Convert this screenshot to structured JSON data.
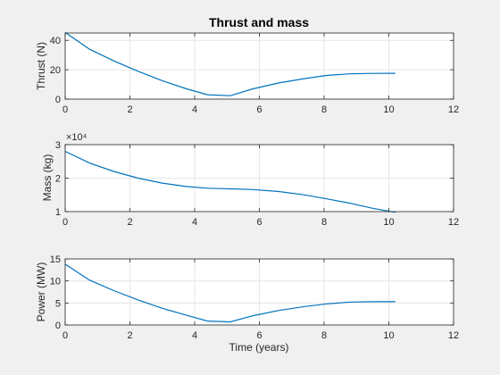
{
  "figure": {
    "title": "Thrust and mass",
    "background": "#f0f0f0",
    "axes_color": "#262626",
    "line_color": "#0072bd",
    "grid_color": "#e0e0e0"
  },
  "chart_data": [
    {
      "type": "line",
      "title": "Thrust and mass",
      "xlabel": "",
      "ylabel": "Thrust (N)",
      "xlim": [
        0,
        12
      ],
      "ylim": [
        0,
        45
      ],
      "xticks": [
        0,
        2,
        4,
        6,
        8,
        10,
        12
      ],
      "yticks": [
        0,
        20,
        40
      ],
      "grid": true,
      "exponent_label": "",
      "series": [
        {
          "x": [
            0,
            0.75,
            1.5,
            2.25,
            3.0,
            3.75,
            4.4,
            5.1,
            5.8,
            6.6,
            7.4,
            8.1,
            8.8,
            9.5,
            10.2
          ],
          "y": [
            45.5,
            34,
            26,
            19,
            12.5,
            7,
            3,
            2.3,
            7,
            11,
            14,
            16.2,
            17.2,
            17.5,
            17.6
          ]
        }
      ]
    },
    {
      "type": "line",
      "title": "",
      "xlabel": "",
      "ylabel": "Mass (kg)",
      "xlim": [
        0,
        12
      ],
      "ylim": [
        1,
        3
      ],
      "xticks": [
        0,
        2,
        4,
        6,
        8,
        10,
        12
      ],
      "yticks": [
        1,
        2,
        3
      ],
      "grid": true,
      "exponent_label": "×10⁴",
      "series": [
        {
          "x": [
            0,
            0.75,
            1.5,
            2.25,
            3.0,
            3.75,
            4.4,
            5.1,
            5.8,
            6.6,
            7.4,
            8.1,
            8.8,
            9.5,
            10.2
          ],
          "y": [
            2.8,
            2.45,
            2.2,
            2.0,
            1.85,
            1.75,
            1.7,
            1.68,
            1.66,
            1.6,
            1.5,
            1.38,
            1.25,
            1.1,
            0.98
          ]
        }
      ]
    },
    {
      "type": "line",
      "title": "",
      "xlabel": "Time (years)",
      "ylabel": "Power (MW)",
      "xlim": [
        0,
        12
      ],
      "ylim": [
        0,
        15
      ],
      "xticks": [
        0,
        2,
        4,
        6,
        8,
        10,
        12
      ],
      "yticks": [
        0,
        5,
        10,
        15
      ],
      "grid": true,
      "exponent_label": "",
      "series": [
        {
          "x": [
            0,
            0.75,
            1.5,
            2.25,
            3.0,
            3.75,
            4.4,
            5.1,
            5.8,
            6.6,
            7.4,
            8.1,
            8.8,
            9.5,
            10.2
          ],
          "y": [
            13.8,
            10.2,
            7.8,
            5.7,
            3.8,
            2.2,
            0.9,
            0.7,
            2.1,
            3.3,
            4.2,
            4.8,
            5.2,
            5.3,
            5.3
          ]
        }
      ]
    }
  ]
}
